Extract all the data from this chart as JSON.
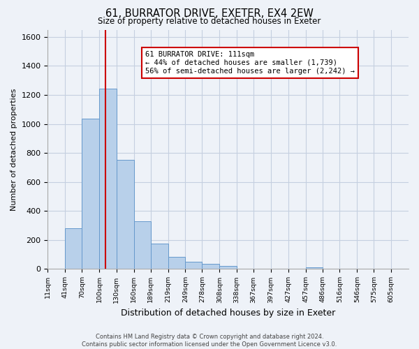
{
  "title": "61, BURRATOR DRIVE, EXETER, EX4 2EW",
  "subtitle": "Size of property relative to detached houses in Exeter",
  "xlabel": "Distribution of detached houses by size in Exeter",
  "ylabel": "Number of detached properties",
  "bar_color": "#b8d0ea",
  "bar_edge_color": "#6699cc",
  "bin_labels": [
    "11sqm",
    "41sqm",
    "70sqm",
    "100sqm",
    "130sqm",
    "160sqm",
    "189sqm",
    "219sqm",
    "249sqm",
    "278sqm",
    "308sqm",
    "338sqm",
    "367sqm",
    "397sqm",
    "427sqm",
    "457sqm",
    "486sqm",
    "516sqm",
    "546sqm",
    "575sqm",
    "605sqm"
  ],
  "bin_edges": [
    11,
    41,
    70,
    100,
    130,
    160,
    189,
    219,
    249,
    278,
    308,
    338,
    367,
    397,
    427,
    457,
    486,
    516,
    546,
    575,
    605
  ],
  "bar_heights": [
    0,
    280,
    1035,
    1245,
    755,
    330,
    175,
    85,
    50,
    35,
    20,
    0,
    0,
    0,
    0,
    10,
    0,
    0,
    0,
    0,
    0
  ],
  "ylim": [
    0,
    1650
  ],
  "yticks": [
    0,
    200,
    400,
    600,
    800,
    1000,
    1200,
    1400,
    1600
  ],
  "vline_x": 111,
  "vline_color": "#cc0000",
  "annotation_line1": "61 BURRATOR DRIVE: 111sqm",
  "annotation_line2": "← 44% of detached houses are smaller (1,739)",
  "annotation_line3": "56% of semi-detached houses are larger (2,242) →",
  "annotation_box_edgecolor": "#cc0000",
  "annotation_box_facecolor": "#ffffff",
  "footer_text": "Contains HM Land Registry data © Crown copyright and database right 2024.\nContains public sector information licensed under the Open Government Licence v3.0.",
  "background_color": "#eef2f8",
  "plot_background_color": "#eef2f8",
  "grid_color": "#c5cfe0"
}
